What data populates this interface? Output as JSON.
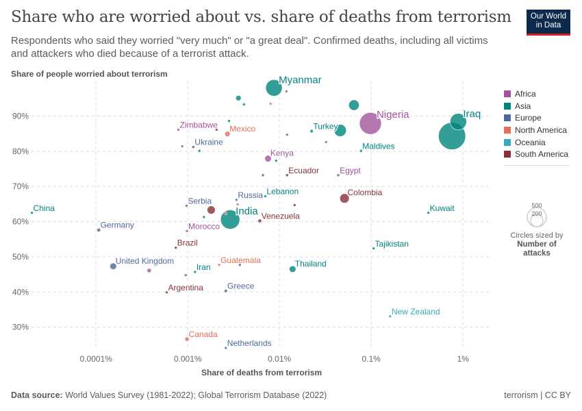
{
  "title": "Share who are worried about vs. share of deaths from terrorism",
  "subtitle": "Respondents who said they worried \"very much\" or \"a great deal\". Confirmed deaths, including all victims and attackers who died because of a terrorist attack.",
  "logo": {
    "line1": "Our World",
    "line2": "in Data"
  },
  "footer": {
    "source_label": "Data source:",
    "source_text": "World Values Survey (1981-2022); Global Terrorism Database (2022)",
    "right": "terrorism | CC BY"
  },
  "size_legend": {
    "values": [
      "500",
      "200"
    ],
    "caption": "Circles sized by",
    "caption_bold": "Number of attacks"
  },
  "chart_data": {
    "type": "scatter",
    "title": "Share who are worried about vs. share of deaths from terrorism",
    "xlabel": "Share of deaths from terrorism",
    "ylabel": "Share of people worried about terrorism",
    "x_scale": "log",
    "xlim": [
      1.38e-05,
      1.95
    ],
    "ylim": [
      23.7,
      100
    ],
    "x_ticks": [
      {
        "v": 0.0001,
        "label": "0.0001%"
      },
      {
        "v": 0.001,
        "label": "0.001%"
      },
      {
        "v": 0.01,
        "label": "0.01%"
      },
      {
        "v": 0.1,
        "label": "0.1%"
      },
      {
        "v": 1,
        "label": "1%"
      }
    ],
    "y_ticks": [
      {
        "v": 30,
        "label": "30%"
      },
      {
        "v": 40,
        "label": "40%"
      },
      {
        "v": 50,
        "label": "50%"
      },
      {
        "v": 60,
        "label": "60%"
      },
      {
        "v": 70,
        "label": "70%"
      },
      {
        "v": 80,
        "label": "80%"
      },
      {
        "v": 90,
        "label": "90%"
      }
    ],
    "grid": true,
    "legend_position": "right",
    "regions": [
      {
        "name": "Africa",
        "color": "#a2559c"
      },
      {
        "name": "Asia",
        "color": "#00847e"
      },
      {
        "name": "Europe",
        "color": "#4c6a9c"
      },
      {
        "name": "North America",
        "color": "#e56e5a"
      },
      {
        "name": "Oceania",
        "color": "#38aaba"
      },
      {
        "name": "South America",
        "color": "#883039"
      }
    ],
    "points": [
      {
        "label": "China",
        "region": "Asia",
        "x": 2e-05,
        "y": 62.5,
        "attacks": 10
      },
      {
        "label": "Germany",
        "region": "Europe",
        "x": 0.000107,
        "y": 57.6,
        "attacks": 20
      },
      {
        "label": "United Kingdom",
        "region": "Europe",
        "x": 0.000154,
        "y": 47.3,
        "attacks": 60
      },
      {
        "label": "",
        "region": "Africa",
        "x": 0.00038,
        "y": 46.1,
        "attacks": 25
      },
      {
        "label": "Argentina",
        "region": "South America",
        "x": 0.00059,
        "y": 39.9,
        "attacks": 5
      },
      {
        "label": "",
        "region": "Europe",
        "x": 0.00095,
        "y": 44.8,
        "attacks": 5
      },
      {
        "label": "Canada",
        "region": "North America",
        "x": 0.00098,
        "y": 26.6,
        "attacks": 25
      },
      {
        "label": "Brazil",
        "region": "South America",
        "x": 0.00074,
        "y": 52.6,
        "attacks": 6
      },
      {
        "label": "Morocco",
        "region": "Africa",
        "x": 0.00098,
        "y": 57.3,
        "attacks": 6
      },
      {
        "label": "Serbia",
        "region": "Europe",
        "x": 0.00097,
        "y": 64.5,
        "attacks": 6
      },
      {
        "label": "Zimbabwe",
        "region": "Africa",
        "x": 0.00079,
        "y": 86.1,
        "attacks": 6
      },
      {
        "label": "",
        "region": "Africa",
        "x": 0.00087,
        "y": 81.4,
        "attacks": 6
      },
      {
        "label": "Ukraine",
        "region": "Europe",
        "x": 0.00115,
        "y": 81.2,
        "attacks": 12
      },
      {
        "label": "",
        "region": "Asia",
        "x": 0.00134,
        "y": 80.1,
        "attacks": 8
      },
      {
        "label": "",
        "region": "South America",
        "x": 0.00206,
        "y": 86.1,
        "attacks": 6
      },
      {
        "label": "",
        "region": "Asia",
        "x": 0.00282,
        "y": 88.6,
        "attacks": 5
      },
      {
        "label": "Mexico",
        "region": "North America",
        "x": 0.00271,
        "y": 84.9,
        "attacks": 40
      },
      {
        "label": "",
        "region": "Asia",
        "x": 0.00357,
        "y": 95.1,
        "attacks": 40
      },
      {
        "label": "",
        "region": "Asia",
        "x": 0.0041,
        "y": 93.3,
        "attacks": 5
      },
      {
        "label": "Myanmar",
        "region": "Asia",
        "x": 0.0087,
        "y": 98.0,
        "attacks": 370
      },
      {
        "label": "",
        "region": "North America",
        "x": 0.008,
        "y": 93.5,
        "attacks": 6
      },
      {
        "label": "",
        "region": "Africa",
        "x": 0.0119,
        "y": 97.0,
        "attacks": 4
      },
      {
        "label": "Russia",
        "region": "Europe",
        "x": 0.0034,
        "y": 66.2,
        "attacks": 6
      },
      {
        "label": "Kenya",
        "region": "Africa",
        "x": 0.0075,
        "y": 77.9,
        "attacks": 60
      },
      {
        "label": "",
        "region": "Asia",
        "x": 0.0092,
        "y": 77.3,
        "attacks": 6
      },
      {
        "label": "",
        "region": "Asia",
        "x": 0.0066,
        "y": 73.2,
        "attacks": 4
      },
      {
        "label": "Ecuador",
        "region": "South America",
        "x": 0.0121,
        "y": 73.2,
        "attacks": 5
      },
      {
        "label": "",
        "region": "Africa",
        "x": 0.0121,
        "y": 84.7,
        "attacks": 5
      },
      {
        "label": "Turkey",
        "region": "Asia",
        "x": 0.0224,
        "y": 85.7,
        "attacks": 15
      },
      {
        "label": "",
        "region": "Asia",
        "x": 0.0459,
        "y": 85.9,
        "attacks": 200
      },
      {
        "label": "",
        "region": "Africa",
        "x": 0.0322,
        "y": 82.6,
        "attacks": 6
      },
      {
        "label": "",
        "region": "Asia",
        "x": 0.0648,
        "y": 93.1,
        "attacks": 150
      },
      {
        "label": "Nigeria",
        "region": "Africa",
        "x": 0.098,
        "y": 87.9,
        "attacks": 650
      },
      {
        "label": "",
        "region": "Africa",
        "x": 0.174,
        "y": 90.2,
        "attacks": 60
      },
      {
        "label": "Maldives",
        "region": "Asia",
        "x": 0.0774,
        "y": 80.1,
        "attacks": 4
      },
      {
        "label": "Egypt",
        "region": "Africa",
        "x": 0.0437,
        "y": 73.2,
        "attacks": 12
      },
      {
        "label": "Colombia",
        "region": "South America",
        "x": 0.0511,
        "y": 66.6,
        "attacks": 120
      },
      {
        "label": "",
        "region": "South America",
        "x": 0.0146,
        "y": 64.7,
        "attacks": 5
      },
      {
        "label": "Lebanon",
        "region": "Asia",
        "x": 0.007,
        "y": 67.2,
        "attacks": 5
      },
      {
        "label": "Venezuela",
        "region": "South America",
        "x": 0.0061,
        "y": 60.2,
        "attacks": 18
      },
      {
        "label": "India",
        "region": "Asia",
        "x": 0.0029,
        "y": 60.6,
        "attacks": 500
      },
      {
        "label": "",
        "region": "North America",
        "x": 0.0026,
        "y": 62.3,
        "attacks": 6
      },
      {
        "label": "",
        "region": "North America",
        "x": 0.0035,
        "y": 64.9,
        "attacks": 4
      },
      {
        "label": "",
        "region": "South America",
        "x": 0.0018,
        "y": 63.3,
        "attacks": 90
      },
      {
        "label": "",
        "region": "Asia",
        "x": 0.0015,
        "y": 61.3,
        "attacks": 10
      },
      {
        "label": "Iran",
        "region": "Asia",
        "x": 0.0012,
        "y": 45.7,
        "attacks": 6
      },
      {
        "label": "Guatemala",
        "region": "North America",
        "x": 0.0022,
        "y": 47.7,
        "attacks": 8
      },
      {
        "label": "",
        "region": "Europe",
        "x": 0.0037,
        "y": 47.7,
        "attacks": 4
      },
      {
        "label": "Greece",
        "region": "Europe",
        "x": 0.0026,
        "y": 40.3,
        "attacks": 15
      },
      {
        "label": "Netherlands",
        "region": "Europe",
        "x": 0.0026,
        "y": 24.1,
        "attacks": 5
      },
      {
        "label": "Thailand",
        "region": "Asia",
        "x": 0.0139,
        "y": 46.5,
        "attacks": 60
      },
      {
        "label": "Tajikistan",
        "region": "Asia",
        "x": 0.106,
        "y": 52.4,
        "attacks": 5
      },
      {
        "label": "New Zealand",
        "region": "Oceania",
        "x": 0.161,
        "y": 33.1,
        "attacks": 5
      },
      {
        "label": "Kuwait",
        "region": "Asia",
        "x": 0.42,
        "y": 62.5,
        "attacks": 5
      },
      {
        "label": "",
        "region": "Asia",
        "x": 0.76,
        "y": 84.3,
        "attacks": 1000
      },
      {
        "label": "Iraq",
        "region": "Asia",
        "x": 0.89,
        "y": 88.4,
        "attacks": 370
      }
    ]
  }
}
